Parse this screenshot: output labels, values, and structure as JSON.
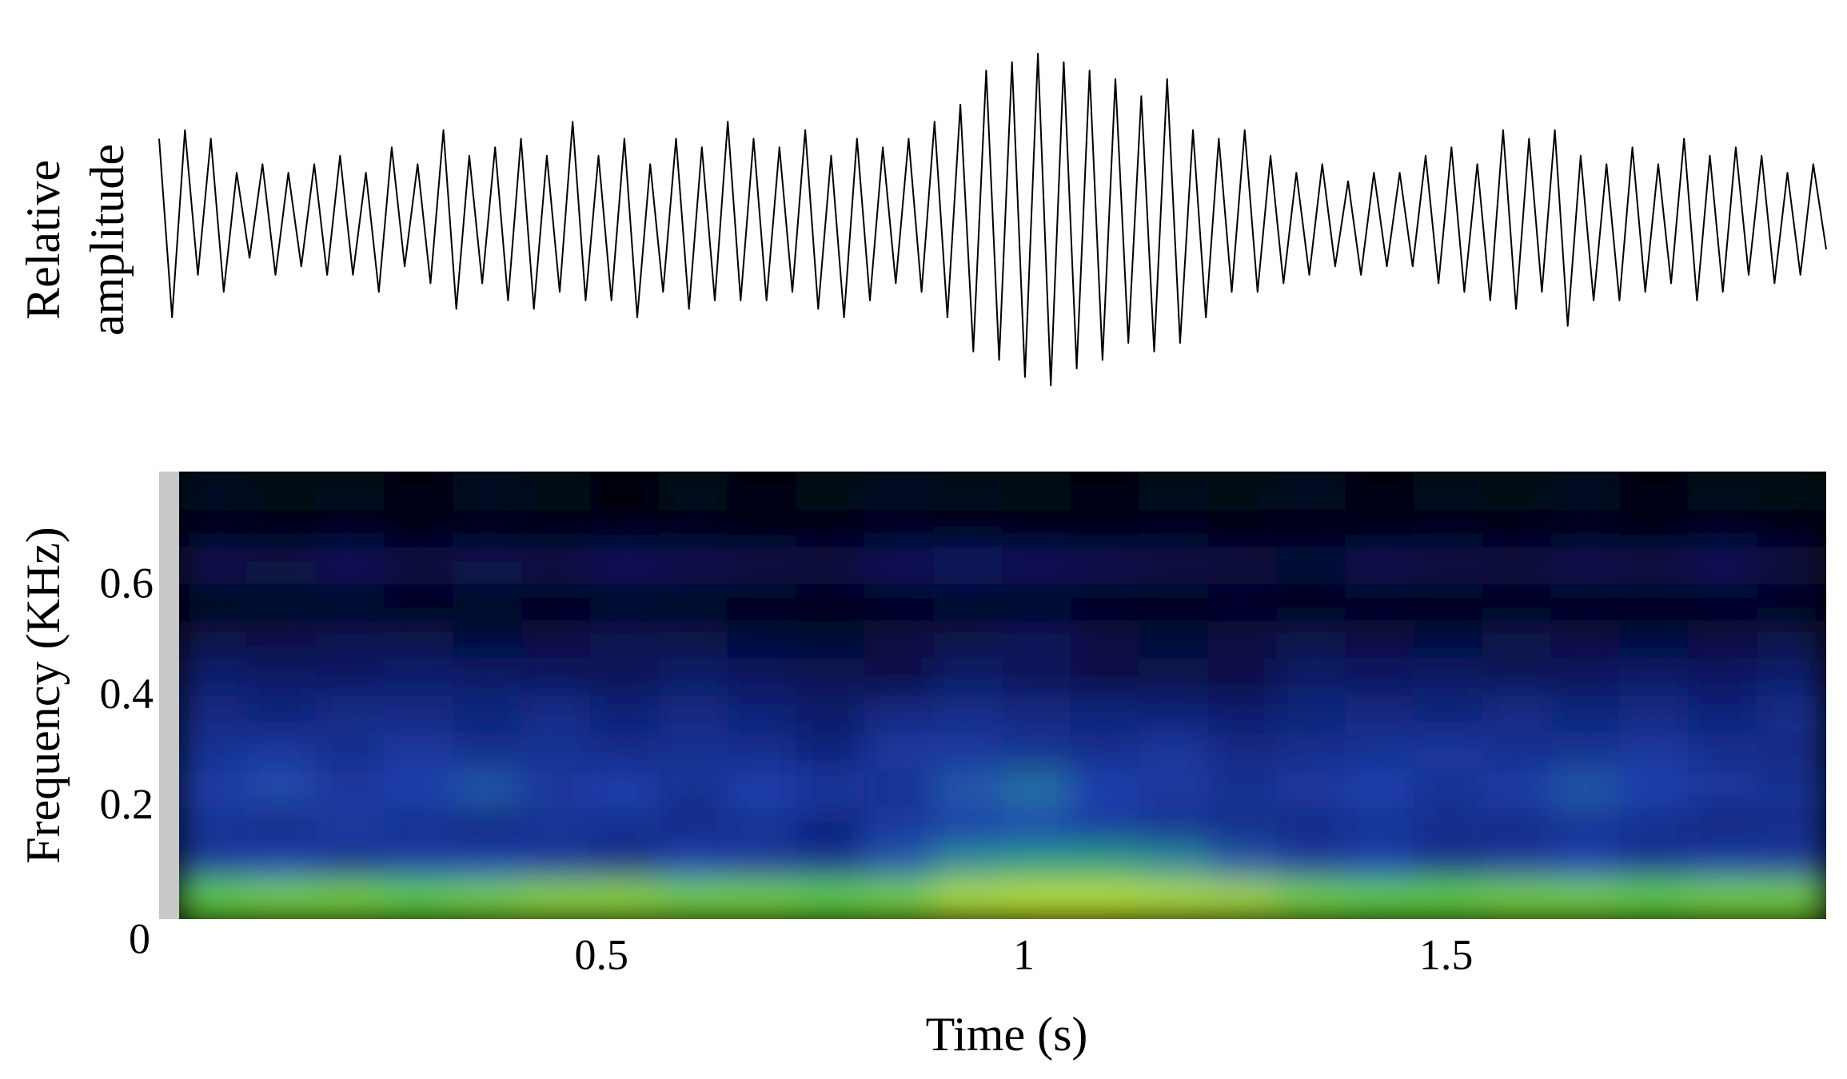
{
  "chart_data": [
    {
      "type": "line",
      "ylabel": [
        "Relative",
        "amplitude"
      ],
      "color": "#000000",
      "ylim": [
        -1,
        1
      ],
      "values": [
        0.5,
        -0.55,
        0.55,
        -0.3,
        0.5,
        -0.4,
        0.3,
        -0.2,
        0.35,
        -0.3,
        0.3,
        -0.25,
        0.35,
        -0.3,
        0.4,
        -0.3,
        0.3,
        -0.4,
        0.45,
        -0.25,
        0.35,
        -0.35,
        0.55,
        -0.5,
        0.4,
        -0.35,
        0.45,
        -0.45,
        0.5,
        -0.5,
        0.4,
        -0.4,
        0.6,
        -0.45,
        0.4,
        -0.45,
        0.5,
        -0.55,
        0.35,
        -0.4,
        0.5,
        -0.5,
        0.45,
        -0.45,
        0.6,
        -0.45,
        0.5,
        -0.45,
        0.45,
        -0.4,
        0.55,
        -0.5,
        0.4,
        -0.55,
        0.5,
        -0.45,
        0.45,
        -0.35,
        0.5,
        -0.4,
        0.6,
        -0.55,
        0.7,
        -0.75,
        0.9,
        -0.8,
        0.95,
        -0.9,
        1.0,
        -0.95,
        0.95,
        -0.85,
        0.9,
        -0.8,
        0.85,
        -0.7,
        0.75,
        -0.75,
        0.85,
        -0.7,
        0.55,
        -0.55,
        0.5,
        -0.4,
        0.55,
        -0.4,
        0.4,
        -0.35,
        0.3,
        -0.3,
        0.35,
        -0.25,
        0.25,
        -0.3,
        0.3,
        -0.25,
        0.3,
        -0.25,
        0.4,
        -0.35,
        0.45,
        -0.4,
        0.35,
        -0.45,
        0.55,
        -0.5,
        0.5,
        -0.4,
        0.55,
        -0.6,
        0.4,
        -0.45,
        0.35,
        -0.45,
        0.45,
        -0.4,
        0.35,
        -0.35,
        0.5,
        -0.45,
        0.4,
        -0.4,
        0.45,
        -0.3,
        0.4,
        -0.35,
        0.3,
        -0.3,
        0.35,
        -0.15
      ]
    },
    {
      "type": "heatmap",
      "xlabel": "Time (s)",
      "ylabel": "Frequency (KHz)",
      "xlim": [
        0,
        1.95
      ],
      "ylim": [
        0,
        0.81
      ],
      "xticks": [
        0.5,
        1,
        1.5
      ],
      "yticks": [
        0,
        0.2,
        0.4,
        0.6
      ],
      "colorscale": [
        [
          0,
          "#000000"
        ],
        [
          0.3,
          "#0a1a66"
        ],
        [
          0.5,
          "#1f40b0"
        ],
        [
          0.65,
          "#2a8f9a"
        ],
        [
          0.82,
          "#22d040"
        ],
        [
          1,
          "#f2f020"
        ]
      ],
      "z": [
        [
          0.88,
          0.9,
          0.9,
          0.88,
          0.9,
          0.92,
          0.92,
          0.9,
          0.9,
          0.88,
          0.9,
          0.95,
          0.96,
          0.96,
          0.95,
          0.94,
          0.9,
          0.88,
          0.88,
          0.9,
          0.9,
          0.88,
          0.9,
          0.9
        ],
        [
          0.45,
          0.5,
          0.42,
          0.48,
          0.5,
          0.45,
          0.4,
          0.5,
          0.45,
          0.42,
          0.55,
          0.66,
          0.7,
          0.7,
          0.65,
          0.55,
          0.45,
          0.5,
          0.4,
          0.45,
          0.5,
          0.42,
          0.48,
          0.45
        ],
        [
          0.42,
          0.38,
          0.45,
          0.4,
          0.36,
          0.42,
          0.4,
          0.38,
          0.42,
          0.35,
          0.45,
          0.48,
          0.5,
          0.45,
          0.42,
          0.4,
          0.38,
          0.42,
          0.4,
          0.38,
          0.42,
          0.4,
          0.36,
          0.4
        ],
        [
          0.48,
          0.52,
          0.45,
          0.5,
          0.55,
          0.45,
          0.5,
          0.42,
          0.5,
          0.45,
          0.42,
          0.55,
          0.6,
          0.5,
          0.45,
          0.42,
          0.45,
          0.5,
          0.42,
          0.48,
          0.55,
          0.5,
          0.45,
          0.42
        ],
        [
          0.42,
          0.45,
          0.4,
          0.45,
          0.4,
          0.42,
          0.38,
          0.42,
          0.4,
          0.35,
          0.45,
          0.45,
          0.42,
          0.4,
          0.45,
          0.38,
          0.4,
          0.42,
          0.45,
          0.4,
          0.42,
          0.45,
          0.4,
          0.38
        ],
        [
          0.38,
          0.35,
          0.4,
          0.38,
          0.36,
          0.4,
          0.35,
          0.38,
          0.35,
          0.3,
          0.38,
          0.4,
          0.38,
          0.36,
          0.35,
          0.32,
          0.36,
          0.38,
          0.35,
          0.4,
          0.36,
          0.38,
          0.35,
          0.4
        ],
        [
          0.32,
          0.3,
          0.28,
          0.32,
          0.3,
          0.28,
          0.25,
          0.3,
          0.28,
          0.25,
          0.2,
          0.3,
          0.25,
          0.2,
          0.22,
          0.2,
          0.3,
          0.28,
          0.3,
          0.25,
          0.28,
          0.3,
          0.28,
          0.32
        ],
        [
          0.22,
          0.2,
          0.25,
          0.22,
          0.18,
          0.2,
          0.25,
          0.22,
          0.18,
          0.15,
          0.2,
          0.22,
          0.28,
          0.2,
          0.18,
          0.2,
          0.22,
          0.2,
          0.18,
          0.22,
          0.2,
          0.18,
          0.2,
          0.22
        ],
        [
          0.05,
          0.08,
          0.05,
          0.05,
          0.08,
          0.05,
          0.04,
          0.06,
          0.05,
          0.04,
          0.05,
          0.06,
          0.05,
          0.04,
          0.05,
          0.06,
          0.05,
          0.04,
          0.05,
          0.05,
          0.04,
          0.06,
          0.05,
          0.05
        ],
        [
          0.25,
          0.22,
          0.28,
          0.2,
          0.25,
          0.22,
          0.28,
          0.25,
          0.22,
          0.2,
          0.28,
          0.3,
          0.28,
          0.25,
          0.22,
          0.2,
          0.18,
          0.25,
          0.22,
          0.2,
          0.25,
          0.22,
          0.28,
          0.2
        ],
        [
          0.05,
          0.04,
          0.06,
          0.05,
          0.04,
          0.05,
          0.06,
          0.05,
          0.04,
          0.05,
          0.06,
          0.05,
          0.04,
          0.05,
          0.06,
          0.05,
          0.04,
          0.05,
          0.06,
          0.05,
          0.04,
          0.05,
          0.06,
          0.05
        ],
        [
          0.12,
          0.08,
          0.1,
          0.06,
          0.12,
          0.08,
          0.05,
          0.1,
          0.06,
          0.08,
          0.12,
          0.1,
          0.08,
          0.06,
          0.1,
          0.08,
          0.12,
          0.06,
          0.1,
          0.08,
          0.12,
          0.06,
          0.1,
          0.08
        ]
      ]
    }
  ]
}
